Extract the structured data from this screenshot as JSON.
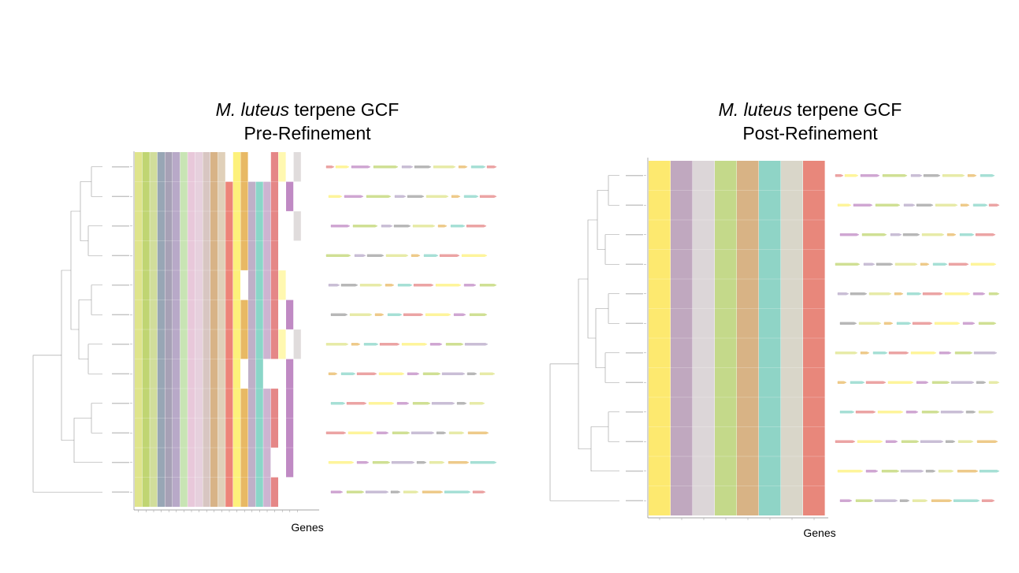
{
  "panels": [
    {
      "id": "pre",
      "title_species": "M. luteus",
      "title_rest": " terpene GCF",
      "subtitle": "Pre-Refinement",
      "xlabel": "Genes",
      "strains": 12,
      "columns": [
        "#dfe48c",
        "#c0d572",
        "#d1dd9b",
        "#98a6b5",
        "#a7a1b6",
        "#b8a9c8",
        "#c8e4b4",
        "#e8c8da",
        "#e6d0dd",
        "#d8c6c2",
        "#d8b387",
        "#e0d0b9",
        "#ed8479",
        "#fdf17b",
        "#e8b964",
        "#bfb0c8",
        "#8ad6c8",
        "#cdb4d1",
        "#e58787",
        "#fff8b0",
        "#c08ac4",
        "#e0dcdc"
      ],
      "presence": [
        [
          1,
          1,
          1,
          1,
          1,
          1,
          1,
          1,
          1,
          1,
          1,
          1,
          0,
          1,
          1,
          0,
          0,
          0,
          1,
          1,
          0,
          1
        ],
        [
          1,
          1,
          1,
          1,
          1,
          1,
          1,
          1,
          1,
          1,
          1,
          1,
          1,
          1,
          1,
          1,
          1,
          1,
          1,
          0,
          1,
          0
        ],
        [
          1,
          1,
          1,
          1,
          1,
          1,
          1,
          1,
          1,
          1,
          1,
          1,
          1,
          1,
          1,
          1,
          1,
          1,
          1,
          0,
          0,
          1
        ],
        [
          1,
          1,
          1,
          1,
          1,
          1,
          1,
          1,
          1,
          1,
          1,
          1,
          1,
          1,
          1,
          1,
          1,
          1,
          1,
          0,
          0,
          0
        ],
        [
          1,
          1,
          1,
          1,
          1,
          1,
          1,
          1,
          1,
          1,
          1,
          1,
          1,
          1,
          0,
          1,
          1,
          1,
          1,
          1,
          0,
          0
        ],
        [
          1,
          1,
          1,
          1,
          1,
          1,
          1,
          1,
          1,
          1,
          1,
          1,
          1,
          1,
          1,
          1,
          1,
          1,
          1,
          0,
          1,
          0
        ],
        [
          1,
          1,
          1,
          1,
          1,
          1,
          1,
          1,
          1,
          1,
          1,
          1,
          1,
          1,
          1,
          1,
          1,
          1,
          1,
          1,
          0,
          1
        ],
        [
          1,
          1,
          1,
          1,
          1,
          1,
          1,
          1,
          1,
          1,
          1,
          1,
          1,
          1,
          0,
          1,
          1,
          0,
          0,
          0,
          1,
          0
        ],
        [
          1,
          1,
          1,
          1,
          1,
          1,
          1,
          1,
          1,
          1,
          1,
          1,
          1,
          1,
          1,
          1,
          1,
          1,
          1,
          0,
          1,
          0
        ],
        [
          1,
          1,
          1,
          1,
          1,
          1,
          1,
          1,
          1,
          1,
          1,
          1,
          1,
          1,
          1,
          1,
          1,
          1,
          1,
          0,
          1,
          0
        ],
        [
          1,
          1,
          1,
          1,
          1,
          1,
          1,
          1,
          1,
          1,
          1,
          1,
          1,
          1,
          1,
          1,
          1,
          1,
          0,
          0,
          1,
          0
        ],
        [
          1,
          1,
          1,
          1,
          1,
          1,
          1,
          1,
          1,
          1,
          1,
          1,
          1,
          1,
          1,
          1,
          1,
          1,
          1,
          0,
          0,
          0
        ]
      ]
    },
    {
      "id": "post",
      "title_species": "M. luteus",
      "title_rest": " terpene GCF",
      "subtitle": "Post-Refinement",
      "xlabel": "Genes",
      "strains": 12,
      "columns": [
        "#fde96f",
        "#c0a8bf",
        "#dcd6d8",
        "#c4d98a",
        "#d8b385",
        "#8fd4c6",
        "#d9d6c9",
        "#e8877b"
      ],
      "presence": [
        [
          1,
          1,
          1,
          1,
          1,
          1,
          1,
          1
        ],
        [
          1,
          1,
          1,
          1,
          1,
          1,
          1,
          1
        ],
        [
          1,
          1,
          1,
          1,
          1,
          1,
          1,
          1
        ],
        [
          1,
          1,
          1,
          1,
          1,
          1,
          1,
          1
        ],
        [
          1,
          1,
          1,
          1,
          1,
          1,
          1,
          1
        ],
        [
          1,
          1,
          1,
          1,
          1,
          1,
          1,
          1
        ],
        [
          1,
          1,
          1,
          1,
          1,
          1,
          1,
          1
        ],
        [
          1,
          1,
          1,
          1,
          1,
          1,
          1,
          1
        ],
        [
          1,
          1,
          1,
          1,
          1,
          1,
          1,
          1
        ],
        [
          1,
          1,
          1,
          1,
          1,
          1,
          1,
          1
        ],
        [
          1,
          1,
          1,
          1,
          1,
          1,
          1,
          1
        ],
        [
          1,
          1,
          1,
          1,
          1,
          1,
          1,
          1
        ]
      ]
    }
  ]
}
